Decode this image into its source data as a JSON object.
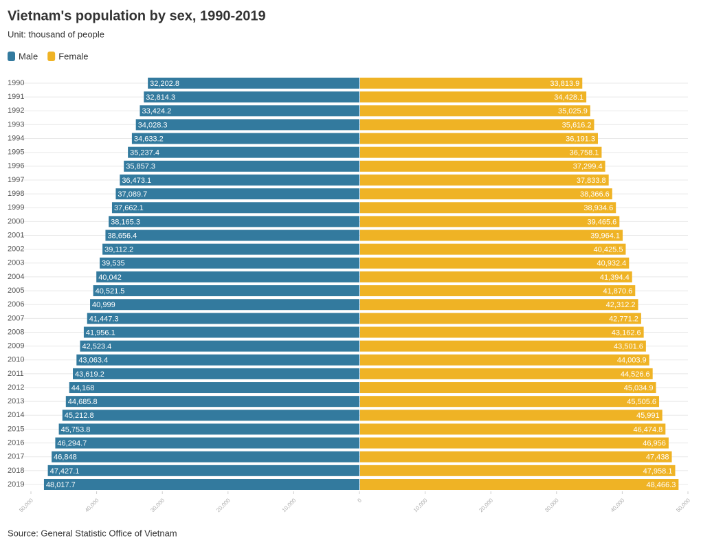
{
  "chart_data": {
    "type": "pyramid",
    "title": "Vietnam's population by sex, 1990-2019",
    "subtitle": "Unit: thousand of people",
    "source": "Source: General Statistic Office of Vietnam",
    "categories": [
      "1990",
      "1991",
      "1992",
      "1993",
      "1994",
      "1995",
      "1996",
      "1997",
      "1998",
      "1999",
      "2000",
      "2001",
      "2002",
      "2003",
      "2004",
      "2005",
      "2006",
      "2007",
      "2008",
      "2009",
      "2010",
      "2011",
      "2012",
      "2013",
      "2014",
      "2015",
      "2016",
      "2017",
      "2018",
      "2019"
    ],
    "series": [
      {
        "name": "Male",
        "color": "#337a9e",
        "side": "left",
        "values": [
          32202.8,
          32814.3,
          33424.2,
          34028.3,
          34633.2,
          35237.4,
          35857.3,
          36473.1,
          37089.7,
          37662.1,
          38165.3,
          38656.4,
          39112.2,
          39535,
          40042,
          40521.5,
          40999,
          41447.3,
          41956.1,
          42523.4,
          43063.4,
          43619.2,
          44168,
          44685.8,
          45212.8,
          45753.8,
          46294.7,
          46848,
          47427.1,
          48017.7
        ],
        "value_labels": [
          "32,202.8",
          "32,814.3",
          "33,424.2",
          "34,028.3",
          "34,633.2",
          "35,237.4",
          "35,857.3",
          "36,473.1",
          "37,089.7",
          "37,662.1",
          "38,165.3",
          "38,656.4",
          "39,112.2",
          "39,535",
          "40,042",
          "40,521.5",
          "40,999",
          "41,447.3",
          "41,956.1",
          "42,523.4",
          "43,063.4",
          "43,619.2",
          "44,168",
          "44,685.8",
          "45,212.8",
          "45,753.8",
          "46,294.7",
          "46,848",
          "47,427.1",
          "48,017.7"
        ]
      },
      {
        "name": "Female",
        "color": "#efb325",
        "side": "right",
        "values": [
          33813.9,
          34428.1,
          35025.9,
          35616.2,
          36191.3,
          36758.1,
          37299.4,
          37833.8,
          38366.6,
          38934.6,
          39465.6,
          39964.1,
          40425.5,
          40932.4,
          41394.4,
          41870.6,
          42312.2,
          42771.2,
          43162.6,
          43501.6,
          44003.9,
          44526.6,
          45034.9,
          45505.6,
          45991,
          46474.8,
          46956,
          47438,
          47958.1,
          48466.3
        ],
        "value_labels": [
          "33,813.9",
          "34,428.1",
          "35,025.9",
          "35,616.2",
          "36,191.3",
          "36,758.1",
          "37,299.4",
          "37,833.8",
          "38,366.6",
          "38,934.6",
          "39,465.6",
          "39,964.1",
          "40,425.5",
          "40,932.4",
          "41,394.4",
          "41,870.6",
          "42,312.2",
          "42,771.2",
          "43,162.6",
          "43,501.6",
          "44,003.9",
          "44,526.6",
          "45,034.9",
          "45,505.6",
          "45,991",
          "46,474.8",
          "46,956",
          "47,438",
          "47,958.1",
          "48,466.3"
        ]
      }
    ],
    "xlim": [
      -50000,
      50000
    ],
    "xticks": [
      {
        "value": -50000,
        "label": "50,000"
      },
      {
        "value": -40000,
        "label": "40,000"
      },
      {
        "value": -30000,
        "label": "30,000"
      },
      {
        "value": -20000,
        "label": "20,000"
      },
      {
        "value": -10000,
        "label": "10,000"
      },
      0,
      {
        "value": 10000,
        "label": "10,000"
      },
      {
        "value": 20000,
        "label": "20,000"
      },
      {
        "value": 30000,
        "label": "30,000"
      },
      {
        "value": 40000,
        "label": "40,000"
      },
      {
        "value": 50000,
        "label": "50,000"
      }
    ],
    "grid": true
  }
}
